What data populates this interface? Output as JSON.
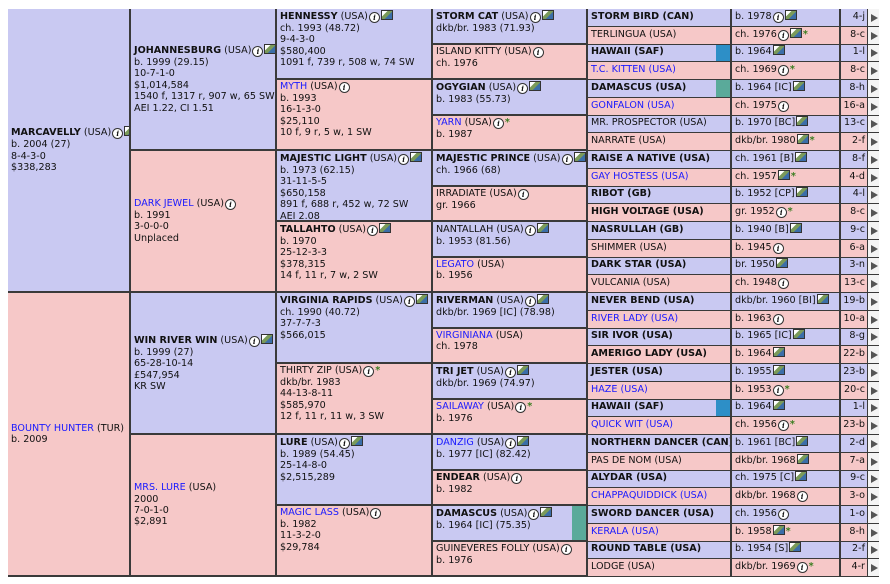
{
  "gen1": [
    {
      "name": "MARCAVELLY",
      "country": "(USA)",
      "lines": [
        "b. 2004 (27)",
        "8-4-3-0",
        "$338,283"
      ],
      "icon": true,
      "photo": true
    },
    {
      "name": "BOUNTY HUNTER",
      "country": "(TUR)",
      "lines": [
        "b. 2009"
      ],
      "link": true
    }
  ],
  "gen2": [
    {
      "name": "JOHANNESBURG",
      "country": "(USA)",
      "lines": [
        "b. 1999 (29.15)",
        "10-7-1-0",
        "$1,014,584",
        "1540 f, 1317 r, 907 w, 65 SW",
        "AEI 1.22, CI 1.51"
      ],
      "icon": true,
      "photo": true
    },
    {
      "name": "DARK JEWEL",
      "country": "(USA)",
      "lines": [
        "b. 1991",
        "3-0-0-0",
        "Unplaced"
      ],
      "icon": true,
      "link": true
    },
    {
      "name": "WIN RIVER WIN",
      "country": "(USA)",
      "lines": [
        "b. 1999 (27)",
        "65-28-10-14",
        "£547,954",
        "KR SW"
      ],
      "icon": true,
      "photo": true
    },
    {
      "name": "MRS. LURE",
      "country": "(USA)",
      "lines": [
        "2000",
        "7-0-1-0",
        "$2,891"
      ],
      "link": true
    }
  ],
  "gen3": [
    {
      "name": "HENNESSY",
      "country": "(USA)",
      "lines": [
        "ch. 1993 (48.72)",
        "9-4-3-0",
        "$580,400",
        "1091 f, 739 r, 508 w, 74 SW"
      ],
      "icon": true,
      "photo": true
    },
    {
      "name": "MYTH",
      "country": "(USA)",
      "lines": [
        "b. 1993",
        "16-1-3-0",
        "$25,110",
        "10 f, 9 r, 5 w, 1 SW"
      ],
      "icon": true,
      "link": true
    },
    {
      "name": "MAJESTIC LIGHT",
      "country": "(USA)",
      "lines": [
        "b. 1973 (62.15)",
        "31-11-5-5",
        "$650,158",
        "891 f, 688 r, 452 w, 72 SW",
        "AEI 2.08"
      ],
      "icon": true,
      "photo": true
    },
    {
      "name": "TALLAHTO",
      "country": "(USA)",
      "lines": [
        "b. 1970",
        "25-12-3-3",
        "$378,315",
        "14 f, 11 r, 7 w, 2 SW"
      ],
      "icon": true,
      "photo": true
    },
    {
      "name": "VIRGINIA RAPIDS",
      "country": "(USA)",
      "lines": [
        "ch. 1990 (40.72)",
        "37-7-7-3",
        "$566,015"
      ],
      "icon": true,
      "photo": true
    },
    {
      "name": "THIRTY ZIP",
      "country": "(USA)",
      "lines": [
        "dkb/br. 1983",
        "44-13-8-11",
        "$585,970",
        "12 f, 11 r, 11 w, 3 SW"
      ],
      "icon": true,
      "star": true,
      "plain": true
    },
    {
      "name": "LURE",
      "country": "(USA)",
      "lines": [
        "b. 1989 (54.45)",
        "25-14-8-0",
        "$2,515,289"
      ],
      "icon": true,
      "photo": true
    },
    {
      "name": "MAGIC LASS",
      "country": "(USA)",
      "lines": [
        "b. 1982",
        "11-3-2-0",
        "$29,784"
      ],
      "icon": true,
      "link": true
    }
  ],
  "gen4": [
    {
      "name": "STORM CAT",
      "country": "(USA)",
      "lines": [
        "dkb/br. 1983 (71.93)"
      ],
      "icon": true,
      "photo": true
    },
    {
      "name": "ISLAND KITTY",
      "country": "(USA)",
      "lines": [
        "ch. 1976"
      ],
      "icon": true,
      "plain": true
    },
    {
      "name": "OGYGIAN",
      "country": "(USA)",
      "lines": [
        "b. 1983 (55.73)"
      ],
      "icon": true,
      "photo": true
    },
    {
      "name": "YARN",
      "country": "(USA)",
      "lines": [
        "b. 1987"
      ],
      "icon": true,
      "star": true,
      "link": true
    },
    {
      "name": "MAJESTIC PRINCE",
      "country": "(USA)",
      "lines": [
        "ch. 1966 (68)"
      ],
      "icon": true,
      "photo": true
    },
    {
      "name": "IRRADIATE",
      "country": "(USA)",
      "lines": [
        "gr. 1966"
      ],
      "icon": true,
      "plain": true
    },
    {
      "name": "NANTALLAH",
      "country": "(USA)",
      "lines": [
        "b. 1953 (81.56)"
      ],
      "icon": true,
      "photo": true,
      "plain": true
    },
    {
      "name": "LEGATO",
      "country": "(USA)",
      "lines": [
        "b. 1956"
      ],
      "link": true
    },
    {
      "name": "RIVERMAN",
      "country": "(USA)",
      "lines": [
        "dkb/br. 1969 [IC] (78.98)"
      ],
      "icon": true,
      "photo": true
    },
    {
      "name": "VIRGINIANA",
      "country": "(USA)",
      "lines": [
        "ch. 1978"
      ],
      "link": true
    },
    {
      "name": "TRI JET",
      "country": "(USA)",
      "lines": [
        "dkb/br. 1969 (74.97)"
      ],
      "icon": true,
      "photo": true
    },
    {
      "name": "SAILAWAY",
      "country": "(USA)",
      "lines": [
        "b. 1976"
      ],
      "icon": true,
      "star": true,
      "link": true
    },
    {
      "name": "DANZIG",
      "country": "(USA)",
      "lines": [
        "b. 1977 [IC] (82.42)"
      ],
      "icon": true,
      "photo": true,
      "link": true
    },
    {
      "name": "ENDEAR",
      "country": "(USA)",
      "lines": [
        "b. 1982"
      ],
      "icon": true
    },
    {
      "name": "DAMASCUS",
      "country": "(USA)",
      "lines": [
        "b. 1964 [IC] (75.35)"
      ],
      "icon": true,
      "photo": true,
      "teal": true
    },
    {
      "name": "GUINEVERES FOLLY",
      "country": "(USA)",
      "lines": [
        "b. 1976"
      ],
      "icon": true,
      "plain": true
    }
  ],
  "gen5": [
    {
      "name": "STORM BIRD (CAN)",
      "info": "b. 1978",
      "icon": true,
      "photo": true,
      "num": "4-j"
    },
    {
      "name": "TERLINGUA (USA)",
      "info": "ch. 1976",
      "icon": true,
      "photo": true,
      "star": true,
      "num": "8-c",
      "plain": true
    },
    {
      "name": "HAWAII (SAF)",
      "info": "b. 1964",
      "photo": true,
      "num": "1-l",
      "blue": true
    },
    {
      "name": "T.C. KITTEN (USA)",
      "info": "ch. 1969",
      "icon": true,
      "star": true,
      "num": "8-c",
      "link": true
    },
    {
      "name": "DAMASCUS (USA)",
      "info": "b. 1964 [IC]",
      "photo": true,
      "num": "8-h",
      "teal": true
    },
    {
      "name": "GONFALON (USA)",
      "info": "ch. 1975",
      "icon": true,
      "num": "16-a",
      "link": true
    },
    {
      "name": "MR. PROSPECTOR (USA)",
      "info": "b. 1970 [BC]",
      "photo": true,
      "num": "13-c",
      "plain": true
    },
    {
      "name": "NARRATE (USA)",
      "info": "dkb/br. 1980",
      "photo": true,
      "star": true,
      "num": "2-f",
      "plain": true
    },
    {
      "name": "RAISE A NATIVE (USA)",
      "info": "ch. 1961 [B]",
      "photo": true,
      "num": "8-f"
    },
    {
      "name": "GAY HOSTESS (USA)",
      "info": "ch. 1957",
      "photo": true,
      "star": true,
      "num": "4-d",
      "link": true
    },
    {
      "name": "RIBOT (GB)",
      "info": "b. 1952 [CP]",
      "photo": true,
      "num": "4-l"
    },
    {
      "name": "HIGH VOLTAGE (USA)",
      "info": "gr. 1952",
      "icon": true,
      "star": true,
      "num": "8-c"
    },
    {
      "name": "NASRULLAH (GB)",
      "info": "b. 1940 [B]",
      "photo": true,
      "num": "9-c"
    },
    {
      "name": "SHIMMER (USA)",
      "info": "b. 1945",
      "icon": true,
      "num": "6-a",
      "plain": true
    },
    {
      "name": "DARK STAR (USA)",
      "info": "br. 1950",
      "photo": true,
      "num": "3-n"
    },
    {
      "name": "VULCANIA (USA)",
      "info": "ch. 1948",
      "icon": true,
      "num": "13-c",
      "plain": true
    },
    {
      "name": "NEVER BEND (USA)",
      "info": "dkb/br. 1960 [BI]",
      "photo": true,
      "num": "19-b"
    },
    {
      "name": "RIVER LADY (USA)",
      "info": "b. 1963",
      "icon": true,
      "num": "10-a",
      "link": true
    },
    {
      "name": "SIR IVOR (USA)",
      "info": "b. 1965 [IC]",
      "photo": true,
      "num": "8-g"
    },
    {
      "name": "AMERIGO LADY (USA)",
      "info": "b. 1964",
      "photo": true,
      "num": "22-b"
    },
    {
      "name": "JESTER (USA)",
      "info": "b. 1955",
      "photo": true,
      "num": "23-b"
    },
    {
      "name": "HAZE (USA)",
      "info": "b. 1953",
      "icon": true,
      "star": true,
      "num": "20-c",
      "link": true
    },
    {
      "name": "HAWAII (SAF)",
      "info": "b. 1964",
      "photo": true,
      "num": "1-l",
      "blue": true
    },
    {
      "name": "QUICK WIT (USA)",
      "info": "ch. 1956",
      "icon": true,
      "star": true,
      "num": "23-b",
      "link": true
    },
    {
      "name": "NORTHERN DANCER (CAN)",
      "info": "b. 1961 [BC]",
      "photo": true,
      "num": "2-d"
    },
    {
      "name": "PAS DE NOM (USA)",
      "info": "dkb/br. 1968",
      "photo": true,
      "num": "7-a",
      "plain": true
    },
    {
      "name": "ALYDAR (USA)",
      "info": "ch. 1975 [C]",
      "photo": true,
      "num": "9-c"
    },
    {
      "name": "CHAPPAQUIDDICK (USA)",
      "info": "dkb/br. 1968",
      "icon": true,
      "num": "3-o",
      "link": true
    },
    {
      "name": "SWORD DANCER (USA)",
      "info": "ch. 1956",
      "icon": true,
      "num": "1-o"
    },
    {
      "name": "KERALA (USA)",
      "info": "b. 1958",
      "photo": true,
      "star": true,
      "num": "8-h",
      "link": true
    },
    {
      "name": "ROUND TABLE (USA)",
      "info": "b. 1954 [S]",
      "photo": true,
      "num": "2-f"
    },
    {
      "name": "LODGE (USA)",
      "info": "dkb/br. 1969",
      "icon": true,
      "star": true,
      "num": "4-r",
      "plain": true
    }
  ]
}
